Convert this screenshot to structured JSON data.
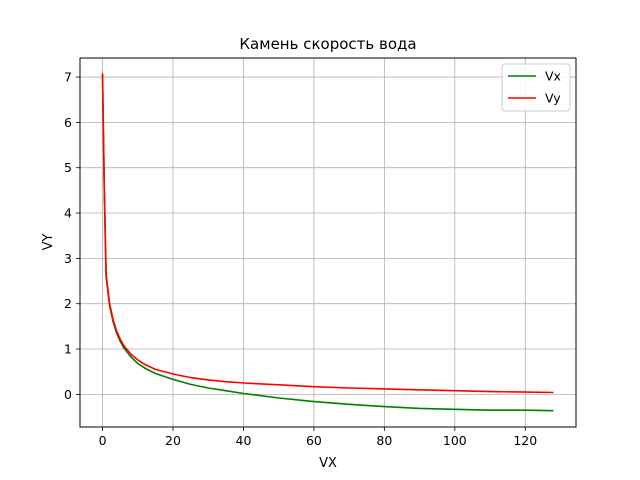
{
  "chart_data": {
    "type": "line",
    "title": "Камень скорость вода",
    "xlabel": "VX",
    "ylabel": "VY",
    "xlim": [
      -6.4,
      134.4
    ],
    "ylim": [
      -0.72,
      7.42
    ],
    "xticks": [
      0,
      20,
      40,
      60,
      80,
      100,
      120
    ],
    "yticks": [
      0,
      1,
      2,
      3,
      4,
      5,
      6,
      7
    ],
    "grid": true,
    "legend_position": "top-right",
    "series": [
      {
        "name": "Vx",
        "color": "#008000",
        "x": [
          0,
          0.5,
          1,
          2,
          3,
          4,
          5,
          6,
          8,
          10,
          12,
          15,
          20,
          25,
          30,
          35,
          40,
          50,
          60,
          70,
          80,
          90,
          100,
          110,
          120,
          128
        ],
        "y": [
          7.05,
          4.5,
          2.6,
          1.95,
          1.6,
          1.35,
          1.17,
          1.03,
          0.83,
          0.68,
          0.58,
          0.46,
          0.33,
          0.22,
          0.14,
          0.08,
          0.02,
          -0.08,
          -0.16,
          -0.22,
          -0.27,
          -0.31,
          -0.33,
          -0.35,
          -0.35,
          -0.36
        ]
      },
      {
        "name": "Vy",
        "color": "#ff0000",
        "x": [
          0,
          0.5,
          1,
          2,
          3,
          4,
          5,
          6,
          8,
          10,
          12,
          15,
          20,
          25,
          30,
          35,
          40,
          50,
          60,
          70,
          80,
          90,
          100,
          110,
          120,
          128
        ],
        "y": [
          7.08,
          4.55,
          2.65,
          2.0,
          1.65,
          1.4,
          1.22,
          1.08,
          0.89,
          0.76,
          0.66,
          0.55,
          0.45,
          0.37,
          0.32,
          0.28,
          0.25,
          0.21,
          0.17,
          0.14,
          0.12,
          0.1,
          0.08,
          0.06,
          0.05,
          0.04
        ]
      }
    ]
  }
}
